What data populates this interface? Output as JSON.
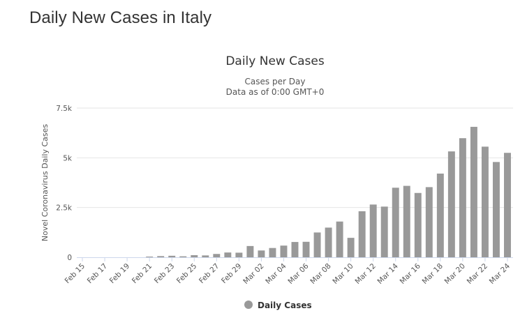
{
  "page": {
    "heading": "Daily New Cases in Italy"
  },
  "colors": {
    "bar": "#999999",
    "grid": "#e6e6e6",
    "axis": "#ccd6eb"
  },
  "chart_data": {
    "type": "bar",
    "title": "Daily New Cases",
    "subtitle_lines": [
      "Cases per Day",
      "Data as of 0:00 GMT+0"
    ],
    "xlabel": "",
    "ylabel": "Novel Coronavirus Daily Cases",
    "ylim": [
      0,
      7500
    ],
    "y_ticks": [
      {
        "value": 0,
        "label": "0"
      },
      {
        "value": 2500,
        "label": "2.5k"
      },
      {
        "value": 5000,
        "label": "5k"
      },
      {
        "value": 7500,
        "label": "7.5k"
      }
    ],
    "grid": true,
    "legend": {
      "position": "bottom-center",
      "entries": [
        "Daily Cases"
      ]
    },
    "categories": [
      "Feb 15",
      "Feb 16",
      "Feb 17",
      "Feb 18",
      "Feb 19",
      "Feb 20",
      "Feb 21",
      "Feb 22",
      "Feb 23",
      "Feb 24",
      "Feb 25",
      "Feb 26",
      "Feb 27",
      "Feb 28",
      "Feb 29",
      "Mar 01",
      "Mar 02",
      "Mar 03",
      "Mar 04",
      "Mar 05",
      "Mar 06",
      "Mar 07",
      "Mar 08",
      "Mar 09",
      "Mar 10",
      "Mar 11",
      "Mar 12",
      "Mar 13",
      "Mar 14",
      "Mar 15",
      "Mar 16",
      "Mar 17",
      "Mar 18",
      "Mar 19",
      "Mar 20",
      "Mar 21",
      "Mar 22",
      "Mar 23",
      "Mar 24"
    ],
    "x_tick_labels": [
      "Feb 15",
      "Feb 17",
      "Feb 19",
      "Feb 21",
      "Feb 23",
      "Feb 25",
      "Feb 27",
      "Feb 29",
      "Mar 02",
      "Mar 04",
      "Mar 06",
      "Mar 08",
      "Mar 10",
      "Mar 12",
      "Mar 14",
      "Mar 16",
      "Mar 18",
      "Mar 20",
      "Mar 22",
      "Mar 24"
    ],
    "series": [
      {
        "name": "Daily Cases",
        "values": [
          0,
          0,
          0,
          0,
          0,
          0,
          17,
          59,
          76,
          48,
          107,
          93,
          167,
          240,
          231,
          566,
          342,
          466,
          587,
          769,
          778,
          1247,
          1492,
          1797,
          977,
          2313,
          2651,
          2547,
          3497,
          3590,
          3233,
          3526,
          4207,
          5322,
          5986,
          6557,
          5560,
          4789,
          5249
        ]
      }
    ]
  }
}
